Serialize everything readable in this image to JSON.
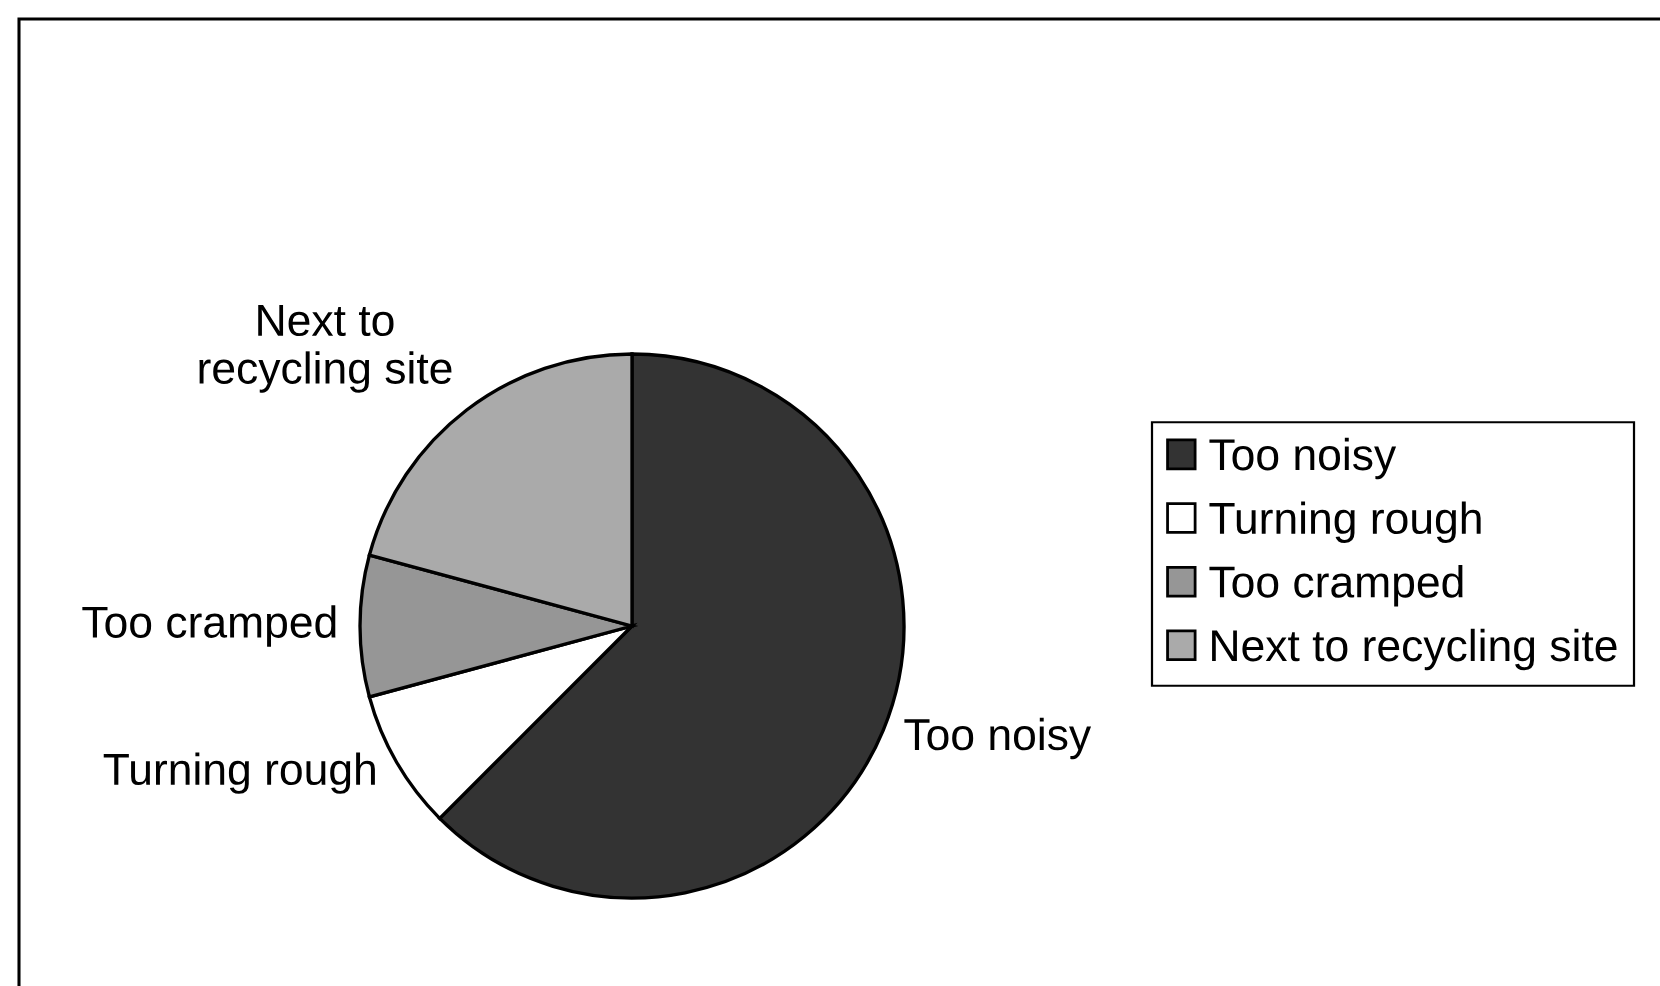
{
  "chart_data": {
    "type": "pie",
    "categories": [
      "Too noisy",
      "Turning rough",
      "Too cramped",
      "Next to recycling site"
    ],
    "values": [
      62.5,
      8.3,
      8.4,
      20.8
    ],
    "colors": [
      "#333333",
      "#ffffff",
      "#969696",
      "#aaaaaa"
    ],
    "legend": "right"
  }
}
